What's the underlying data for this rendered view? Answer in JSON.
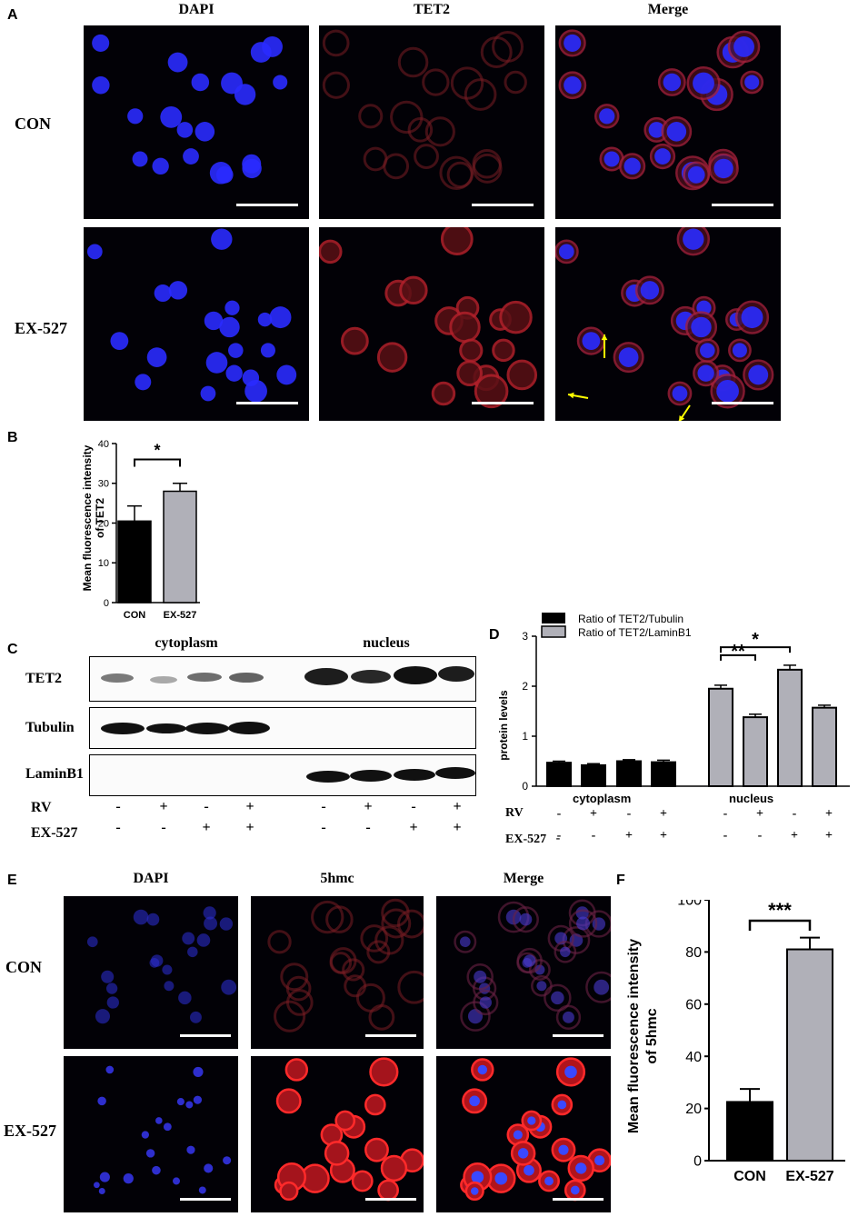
{
  "panel_letters": {
    "A": "A",
    "B": "B",
    "C": "C",
    "D": "D",
    "E": "E",
    "F": "F"
  },
  "panelA": {
    "columns": [
      "DAPI",
      "TET2",
      "Merge"
    ],
    "rows": [
      "CON",
      "EX-527"
    ],
    "colors": {
      "dapi": "#2a2bff",
      "tet2": "#b0202a",
      "background": "#020106",
      "arrow": "#ffff00"
    }
  },
  "panelB": {
    "chart_data": {
      "type": "bar",
      "categories": [
        "CON",
        "EX-527"
      ],
      "values": [
        20.5,
        28.0
      ],
      "errors": [
        3.8,
        2.0
      ],
      "colors": [
        "#000000",
        "#b0b0b8"
      ],
      "ylabel": "Mean fluorescence intensity of TET2",
      "ylabel_lines": [
        "Mean fluorescence intensity",
        "of TET2"
      ],
      "ylim": [
        0,
        40
      ],
      "yticks": [
        0,
        10,
        20,
        30,
        40
      ],
      "significance": [
        {
          "from": "CON",
          "to": "EX-527",
          "label": "*"
        }
      ],
      "grid": false
    }
  },
  "panelC": {
    "groups": [
      "cytoplasm",
      "nucleus"
    ],
    "blots": [
      "TET2",
      "Tubulin",
      "LaminB1"
    ],
    "treatments": [
      {
        "label": "RV",
        "signs": [
          "-",
          "+",
          "-",
          "+",
          "-",
          "+",
          "-",
          "+"
        ]
      },
      {
        "label": "EX-527",
        "signs": [
          "-",
          "-",
          "+",
          "+",
          "-",
          "-",
          "+",
          "+"
        ]
      }
    ]
  },
  "panelD": {
    "chart_data": {
      "type": "bar",
      "groups": [
        "cytoplasm",
        "nucleus"
      ],
      "series": [
        {
          "name": "Ratio of TET2/Tubulin",
          "color": "#000000",
          "values": [
            0.47,
            0.42,
            0.5,
            0.48
          ],
          "errors": [
            0.03,
            0.03,
            0.03,
            0.04
          ]
        },
        {
          "name": "Ratio of TET2/LaminB1",
          "color": "#b0b0b8",
          "values": [
            1.95,
            1.38,
            2.33,
            1.57
          ],
          "errors": [
            0.07,
            0.06,
            0.09,
            0.05
          ]
        }
      ],
      "ylabel": "protein levels",
      "ylim": [
        0,
        3
      ],
      "yticks": [
        0,
        1,
        2,
        3
      ],
      "legend_position": "top",
      "significance": [
        {
          "pair": "nucleus 1 vs 2",
          "label": "**"
        },
        {
          "pair": "nucleus 1 vs 3",
          "label": "*"
        }
      ],
      "treatments": [
        {
          "label": "RV",
          "signs": [
            "-",
            "+",
            "-",
            "+",
            "-",
            "+",
            "-",
            "+"
          ]
        },
        {
          "label": "EX-527",
          "signs": [
            "-",
            "-",
            "+",
            "+",
            "-",
            "-",
            "+",
            "+"
          ]
        }
      ],
      "leading_sign": "-",
      "grid": false
    }
  },
  "panelE": {
    "columns": [
      "DAPI",
      "5hmc",
      "Merge"
    ],
    "rows": [
      "CON",
      "EX-527"
    ]
  },
  "panelF": {
    "chart_data": {
      "type": "bar",
      "categories": [
        "CON",
        "EX-527"
      ],
      "values": [
        22.5,
        81.0
      ],
      "errors": [
        5.0,
        4.5
      ],
      "colors": [
        "#000000",
        "#b0b0b8"
      ],
      "ylabel": "Mean fluorescence intensity of 5hmc",
      "ylabel_lines": [
        "Mean fluorescence intensity",
        "of 5hmc"
      ],
      "ylim": [
        0,
        100
      ],
      "yticks": [
        0,
        20,
        40,
        60,
        80,
        100
      ],
      "significance": [
        {
          "from": "CON",
          "to": "EX-527",
          "label": "***"
        }
      ],
      "grid": false
    }
  }
}
